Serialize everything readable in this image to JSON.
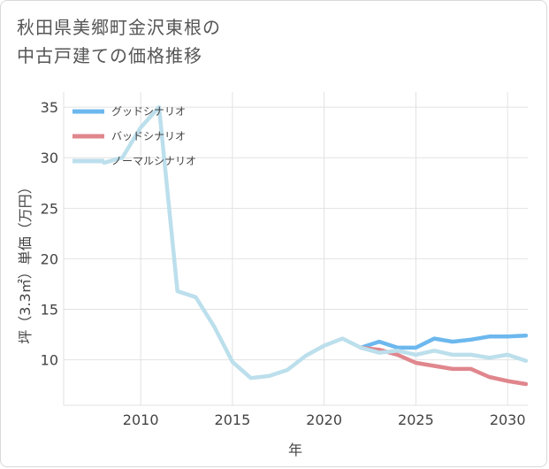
{
  "chart_data": {
    "type": "line",
    "title_lines": [
      "秋田県美郷町金沢東根の",
      "中古戸建ての価格推移"
    ],
    "xlabel": "年",
    "ylabel": "坪（3.3㎡）単価（万円）",
    "xlim": [
      2005.8,
      2031.1
    ],
    "ylim": [
      5.5,
      36.5
    ],
    "xticks": [
      2010,
      2015,
      2020,
      2025,
      2030
    ],
    "yticks": [
      10,
      15,
      20,
      25,
      30,
      35
    ],
    "legend_position": "top-left",
    "series": [
      {
        "name": "グッドシナリオ",
        "color": "#6cb8ee",
        "x": [
          2022,
          2023,
          2024,
          2025,
          2026,
          2027,
          2028,
          2029,
          2030,
          2031
        ],
        "values": [
          11.2,
          11.8,
          11.2,
          11.2,
          12.1,
          11.8,
          12.0,
          12.3,
          12.3,
          12.4
        ]
      },
      {
        "name": "バッドシナリオ",
        "color": "#e0868d",
        "x": [
          2022,
          2023,
          2024,
          2025,
          2026,
          2027,
          2028,
          2029,
          2030,
          2031
        ],
        "values": [
          11.2,
          11.0,
          10.5,
          9.7,
          9.4,
          9.1,
          9.1,
          8.3,
          7.9,
          7.6
        ]
      },
      {
        "name": "ノーマルシナリオ",
        "color": "#bcdfec",
        "x": [
          2008,
          2009,
          2010,
          2011,
          2012,
          2013,
          2014,
          2015,
          2016,
          2017,
          2018,
          2019,
          2020,
          2021,
          2022,
          2023,
          2024,
          2025,
          2026,
          2027,
          2028,
          2029,
          2030,
          2031
        ],
        "values": [
          29.5,
          30.0,
          33.0,
          35.0,
          16.8,
          16.2,
          13.3,
          9.8,
          8.2,
          8.4,
          9.0,
          10.4,
          11.4,
          12.1,
          11.2,
          10.7,
          10.9,
          10.5,
          10.9,
          10.5,
          10.5,
          10.2,
          10.5,
          9.9
        ]
      }
    ]
  }
}
